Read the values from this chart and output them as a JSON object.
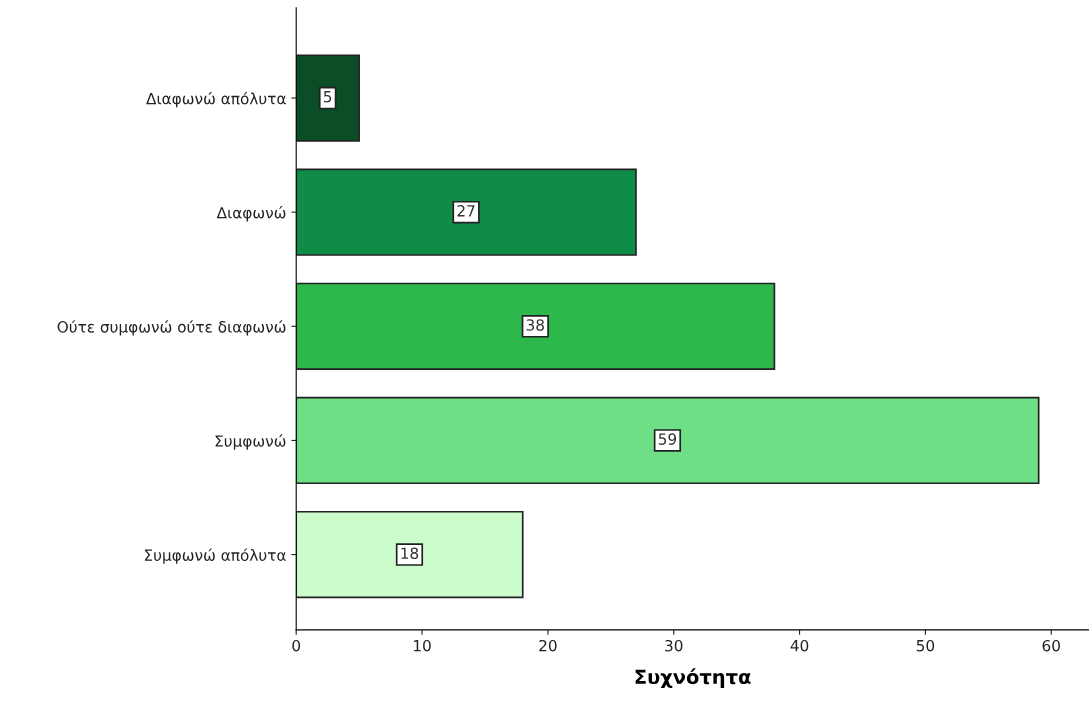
{
  "chart_data": {
    "type": "bar",
    "orientation": "horizontal",
    "xlabel": "Συχνότητα",
    "categories": [
      "Διαφωνώ απόλυτα",
      "Διαφωνώ",
      "Ούτε συμφωνώ ούτε διαφωνώ",
      "Συμφωνώ",
      "Συμφωνώ απόλυτα"
    ],
    "values": [
      5,
      27,
      38,
      59,
      18
    ],
    "colors": [
      "#0a4d26",
      "#0f8c48",
      "#2db84b",
      "#6ede87",
      "#ccfccc"
    ],
    "xlim": [
      0,
      63
    ],
    "xticks": [
      0,
      10,
      20,
      30,
      40,
      50,
      60
    ],
    "data_labels": true,
    "grid": false,
    "legend": false
  }
}
